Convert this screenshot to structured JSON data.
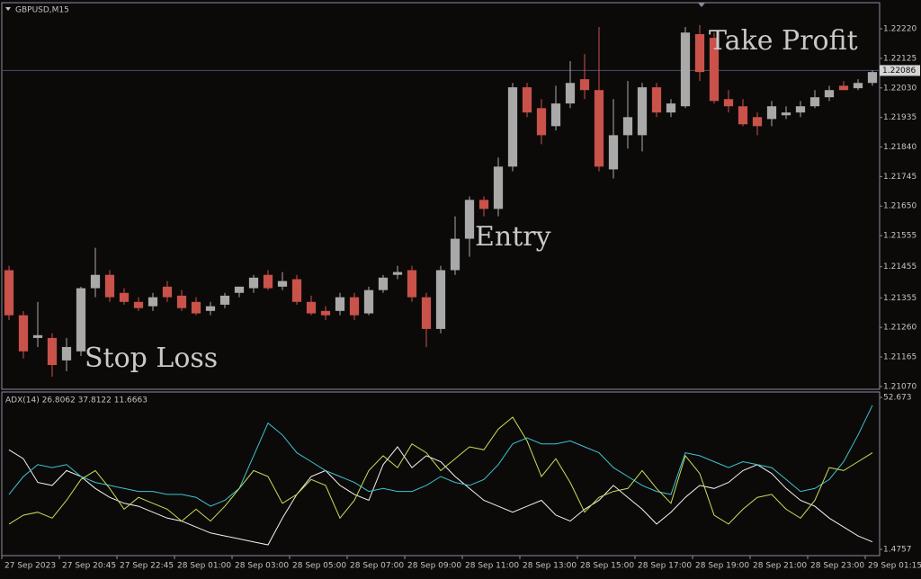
{
  "chart_data": [
    {
      "type": "candlestick",
      "title": "GBPUSD,M15",
      "annotations": [
        "Take Profit",
        "Entry",
        "Stop Loss"
      ],
      "open": [
        1.21444,
        1.21299,
        1.21226,
        1.21226,
        1.21154,
        1.21183,
        1.21386,
        1.21429,
        1.21371,
        1.21342,
        1.21328,
        1.21391,
        1.21362,
        1.21342,
        1.21313,
        1.21333,
        1.21371,
        1.21386,
        1.21429,
        1.21391,
        1.21415,
        1.21342,
        1.21313,
        1.21313,
        1.21357,
        1.21305,
        1.2138,
        1.21429,
        1.21444,
        1.21357,
        1.21255,
        1.21444,
        1.21545,
        1.2167,
        1.21641,
        1.21777,
        1.22032,
        1.21965,
        1.21907,
        1.2198,
        1.22058,
        1.22023,
        1.21768,
        1.21878,
        1.21878,
        1.22032,
        1.21951,
        1.21971,
        1.22203,
        1.22191,
        1.21994,
        1.21971,
        1.21936,
        1.2193,
        1.21942,
        1.21951,
        1.21971,
        1.22,
        1.22037,
        1.22029,
        1.22046
      ],
      "high": [
        1.21458,
        1.21313,
        1.21342,
        1.21241,
        1.21226,
        1.21391,
        1.21516,
        1.21444,
        1.21386,
        1.21357,
        1.21371,
        1.21409,
        1.2138,
        1.21357,
        1.21342,
        1.21371,
        1.21391,
        1.21429,
        1.21444,
        1.21438,
        1.21429,
        1.21362,
        1.21328,
        1.21371,
        1.21371,
        1.21391,
        1.21429,
        1.21458,
        1.21458,
        1.21371,
        1.21458,
        1.21617,
        1.21681,
        1.21681,
        1.21806,
        1.22046,
        1.22046,
        1.21994,
        1.22037,
        1.22116,
        1.22139,
        1.22226,
        1.21994,
        1.22052,
        1.22046,
        1.22046,
        1.21994,
        1.22226,
        1.22232,
        1.22208,
        1.22023,
        1.21994,
        1.21951,
        1.21988,
        1.21971,
        1.21988,
        1.22023,
        1.22037,
        1.22052,
        1.22058,
        1.22087
      ],
      "low": [
        1.21284,
        1.2116,
        1.21197,
        1.21102,
        1.21119,
        1.21168,
        1.21357,
        1.21342,
        1.21333,
        1.21313,
        1.21313,
        1.21342,
        1.21313,
        1.21299,
        1.21299,
        1.21322,
        1.21357,
        1.21371,
        1.2138,
        1.2138,
        1.21333,
        1.21299,
        1.21284,
        1.21299,
        1.21284,
        1.21299,
        1.21371,
        1.21415,
        1.21342,
        1.21197,
        1.21241,
        1.21429,
        1.21487,
        1.21617,
        1.21617,
        1.21762,
        1.21936,
        1.21849,
        1.21893,
        1.21965,
        1.21994,
        1.21762,
        1.21739,
        1.21835,
        1.21826,
        1.21936,
        1.21936,
        1.21965,
        1.22052,
        1.2198,
        1.21951,
        1.21907,
        1.21878,
        1.21907,
        1.2193,
        1.21936,
        1.21965,
        1.21988,
        1.22023,
        1.22023,
        1.22037
      ],
      "close": [
        1.21299,
        1.21183,
        1.21235,
        1.21139,
        1.21197,
        1.21386,
        1.21429,
        1.21357,
        1.21342,
        1.21322,
        1.21357,
        1.21357,
        1.21322,
        1.21305,
        1.21328,
        1.21362,
        1.21391,
        1.2142,
        1.21386,
        1.21409,
        1.21342,
        1.21305,
        1.21299,
        1.21357,
        1.21299,
        1.2138,
        1.2142,
        1.21438,
        1.21357,
        1.21255,
        1.21444,
        1.21545,
        1.2167,
        1.21641,
        1.21777,
        1.22032,
        1.21951,
        1.21878,
        1.2198,
        1.22046,
        1.22023,
        1.21777,
        1.21878,
        1.21936,
        1.22032,
        1.21951,
        1.2198,
        1.22208,
        1.22081,
        1.21988,
        1.21971,
        1.21913,
        1.21907,
        1.21971,
        1.21951,
        1.21971,
        1.22,
        1.22023,
        1.22023,
        1.22046,
        1.22081
      ],
      "up_color": "#a9a9a9",
      "down_color": "#c9524a",
      "xlim": [
        -0.5,
        60.5
      ],
      "ylim": [
        1.21061,
        1.22304
      ],
      "yticks": [
        {
          "value": 1.2222,
          "label": "1.22220"
        },
        1.22125,
        {
          "value": 1.2203,
          "label": "1.22030"
        },
        1.21935,
        {
          "value": 1.2184,
          "label": "1.21840"
        },
        1.21745,
        {
          "value": 1.2165,
          "label": "1.21650"
        },
        1.21555,
        1.21455,
        1.21355,
        {
          "value": 1.2126,
          "label": "1.21260"
        },
        1.21165,
        {
          "value": 1.2107,
          "label": "1.21070"
        }
      ],
      "last_price": {
        "value": 1.22086,
        "label": "1.22086"
      }
    },
    {
      "type": "line",
      "title": "ADX(14) 26.8062 37.8122 11.6663",
      "series": [
        {
          "color": "#f2f2f2",
          "values": [
            35,
            32,
            24,
            23,
            28,
            26,
            22,
            19,
            17,
            16,
            14,
            12,
            11,
            9,
            7,
            6,
            5,
            4,
            3,
            12,
            20,
            26,
            28,
            23,
            20,
            18,
            30,
            36,
            29,
            33,
            31,
            26,
            22,
            18,
            16,
            14,
            16,
            18,
            13,
            11,
            15,
            18,
            23,
            19,
            15,
            10,
            14,
            19,
            23,
            22,
            24,
            28,
            30,
            27,
            22,
            18,
            16,
            12,
            9,
            6,
            4
          ]
        },
        {
          "color": "#3ec3d3",
          "values": [
            20,
            26,
            30,
            29,
            30,
            26,
            24,
            23,
            22,
            21,
            21,
            20,
            20,
            19,
            16,
            18,
            22,
            33,
            44,
            40,
            34,
            31,
            28,
            26,
            24,
            21,
            22,
            21,
            21,
            23,
            26,
            24,
            23,
            25,
            30,
            37,
            39,
            37,
            37,
            38,
            36,
            34,
            29,
            26,
            23,
            21,
            20,
            34,
            33,
            31,
            29,
            31,
            30,
            29,
            25,
            21,
            22,
            25,
            31,
            40,
            50
          ]
        },
        {
          "color": "#c6e05a",
          "values": [
            10,
            13,
            14,
            12,
            18,
            25,
            28,
            22,
            15,
            19,
            17,
            15,
            11,
            15,
            11,
            16,
            22,
            28,
            26,
            17,
            20,
            25,
            23,
            12,
            18,
            28,
            33,
            29,
            37,
            34,
            28,
            32,
            36,
            35,
            42,
            46,
            38,
            26,
            32,
            24,
            14,
            19,
            21,
            22,
            28,
            22,
            17,
            33,
            27,
            13,
            10,
            15,
            19,
            20,
            15,
            12,
            18,
            29,
            28,
            31,
            34
          ]
        }
      ],
      "xlim": [
        -0.5,
        60.5
      ],
      "ylim": [
        1.4757,
        52.673
      ],
      "yticks": [
        52.673,
        1.4757
      ],
      "xticks": [
        {
          "value": -0.5,
          "label": "27 Sep 2023"
        },
        {
          "value": 3.5,
          "label": "27 Sep 20:45"
        },
        {
          "value": 7.5,
          "label": "27 Sep 22:45"
        },
        {
          "value": 11.5,
          "label": "28 Sep 01:00"
        },
        {
          "value": 15.5,
          "label": "28 Sep 03:00"
        },
        {
          "value": 19.5,
          "label": "28 Sep 05:00"
        },
        {
          "value": 23.5,
          "label": "28 Sep 07:00"
        },
        {
          "value": 27.5,
          "label": "28 Sep 09:00"
        },
        {
          "value": 31.5,
          "label": "28 Sep 11:00"
        },
        {
          "value": 35.5,
          "label": "28 Sep 13:00"
        },
        {
          "value": 39.5,
          "label": "28 Sep 15:00"
        },
        {
          "value": 43.5,
          "label": "28 Sep 17:00"
        },
        {
          "value": 47.5,
          "label": "28 Sep 19:00"
        },
        {
          "value": 51.5,
          "label": "28 Sep 21:00"
        },
        {
          "value": 55.5,
          "label": "28 Sep 23:00"
        },
        {
          "value": 59.5,
          "label": "29 Sep 01:15"
        }
      ]
    }
  ]
}
